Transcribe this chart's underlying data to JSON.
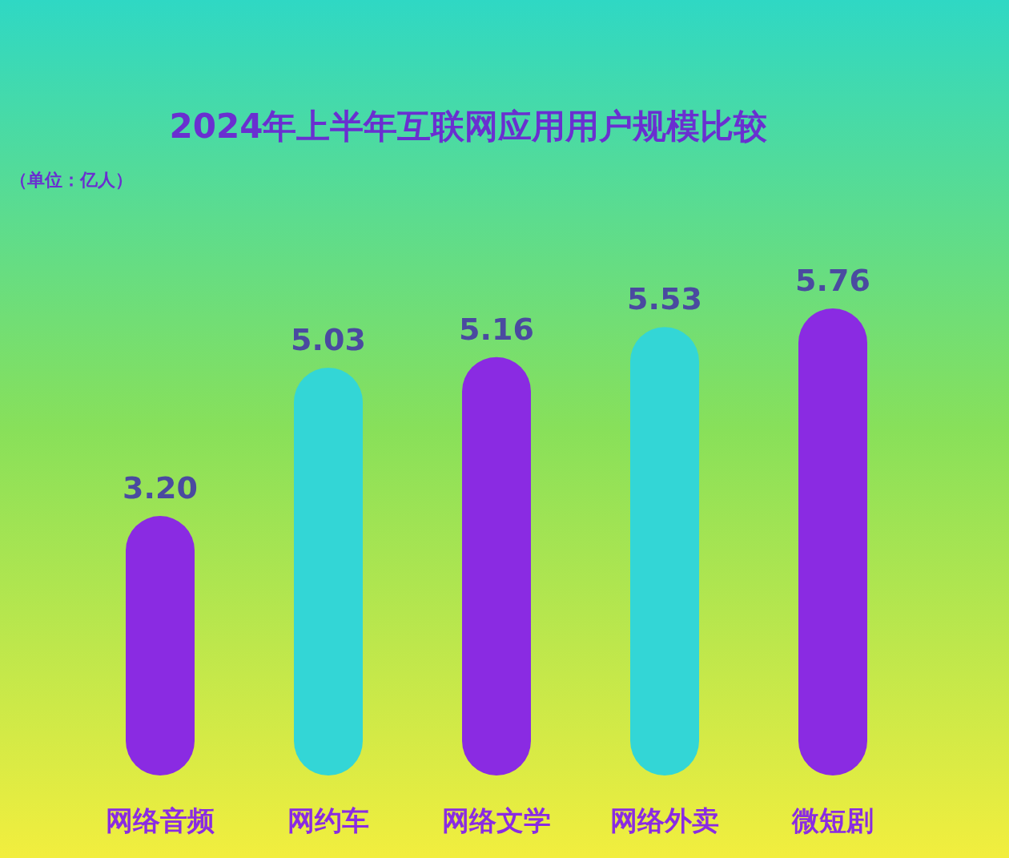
{
  "chart_data": {
    "type": "bar",
    "title": "2024年上半年互联网应用用户规模比较",
    "annotations": [
      "（单位：亿人）"
    ],
    "categories": [
      "网络音频",
      "网约车",
      "网络文学",
      "网络外卖",
      "微短剧"
    ],
    "values": [
      3.2,
      5.03,
      5.16,
      5.53,
      5.76
    ],
    "colors": [
      "#8a2be2",
      "#33d6d6",
      "#8a2be2",
      "#33d6d6",
      "#8a2be2"
    ],
    "value_labels": [
      "3.20",
      "5.03",
      "5.16",
      "5.53",
      "5.76"
    ]
  }
}
